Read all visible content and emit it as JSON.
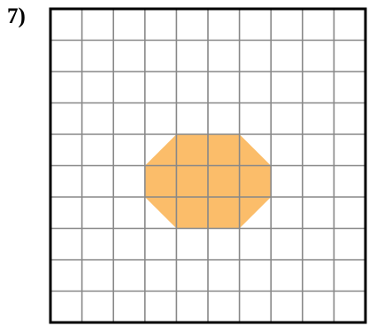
{
  "problem": {
    "number_label": "7)"
  },
  "grid": {
    "columns": 10,
    "rows": 10,
    "line_color": "#888888",
    "border_color": "#000000",
    "background": "#ffffff"
  },
  "shape": {
    "name": "octagon",
    "fill_color": "#fbbd6a",
    "vertices_in_grid_units": [
      [
        4,
        4
      ],
      [
        6,
        4
      ],
      [
        7,
        5
      ],
      [
        7,
        6
      ],
      [
        6,
        7
      ],
      [
        4,
        7
      ],
      [
        3,
        6
      ],
      [
        3,
        5
      ]
    ]
  }
}
